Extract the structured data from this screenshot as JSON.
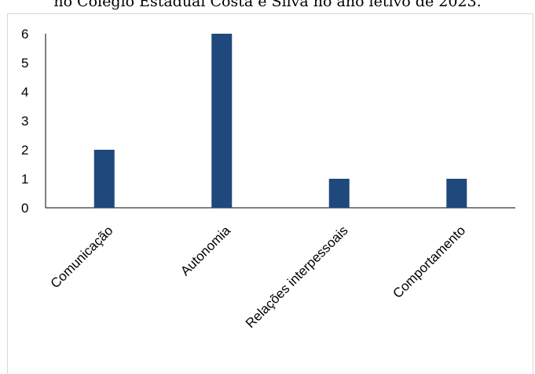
{
  "chart_data": {
    "type": "bar",
    "title": "no Colégio Estadual Costa e Silva no ano letivo de 2023.",
    "categories": [
      "Comunicação",
      "Autonomia",
      "Relações interpessoais",
      "Comportamento"
    ],
    "values": [
      2,
      6,
      1,
      1
    ],
    "ylim": [
      0,
      6
    ],
    "yticks": [
      0,
      1,
      2,
      3,
      4,
      5,
      6
    ],
    "xlabel": "",
    "ylabel": "",
    "grid": false,
    "bar_color": "#1f497d",
    "axis_color": "#000000"
  }
}
